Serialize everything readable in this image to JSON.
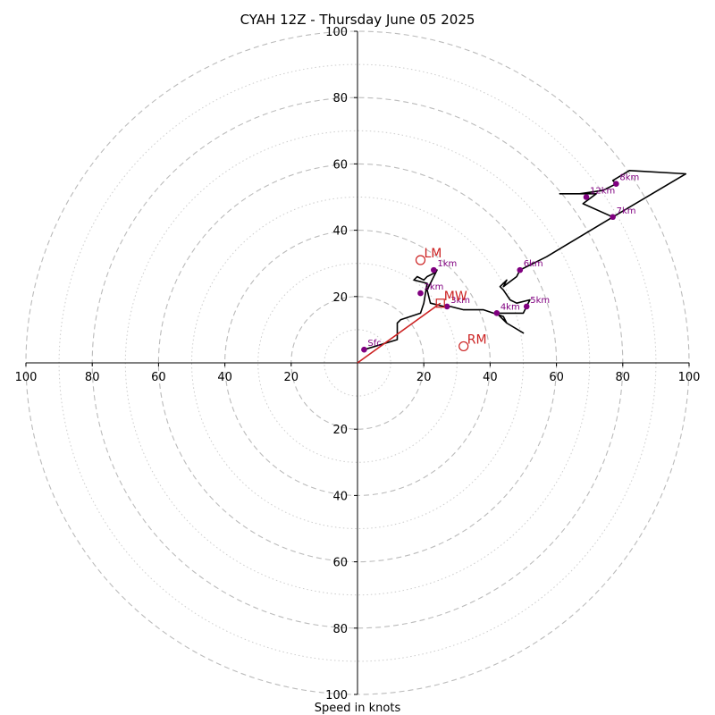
{
  "chart_data": {
    "type": "hodograph",
    "title": "CYAH 12Z - Thursday June 05 2025",
    "xlabel": "Speed in knots",
    "xlim": [
      -100,
      100
    ],
    "ylim": [
      -100,
      100
    ],
    "major_rings": [
      20,
      40,
      60,
      80,
      100
    ],
    "minor_rings": [
      10,
      30,
      50,
      70,
      90
    ],
    "x_tick_labels": [
      "100",
      "80",
      "60",
      "40",
      "20",
      "20",
      "40",
      "60",
      "80",
      "100"
    ],
    "x_tick_values": [
      -100,
      -80,
      -60,
      -40,
      -20,
      20,
      40,
      60,
      80,
      100
    ],
    "y_tick_labels": [
      "100",
      "80",
      "60",
      "40",
      "20",
      "20",
      "40",
      "60",
      "80",
      "100"
    ],
    "y_tick_values": [
      100,
      80,
      60,
      40,
      20,
      -20,
      -40,
      -60,
      -80,
      -100
    ],
    "colors": {
      "hodo_line": "#000000",
      "height_marker": "#800080",
      "storm_motion": "#cc2222",
      "grid": "#bbbbbb"
    },
    "hodograph_line": [
      [
        2,
        4
      ],
      [
        12,
        7
      ],
      [
        12,
        12
      ],
      [
        13,
        13
      ],
      [
        19,
        15
      ],
      [
        20,
        18
      ],
      [
        21,
        24
      ],
      [
        17,
        25
      ],
      [
        18,
        26
      ],
      [
        20,
        25
      ],
      [
        21,
        26
      ],
      [
        23,
        27
      ],
      [
        24,
        28
      ],
      [
        21,
        22
      ],
      [
        22,
        18
      ],
      [
        26,
        17
      ],
      [
        28,
        17
      ],
      [
        32,
        16
      ],
      [
        38,
        16
      ],
      [
        44,
        14
      ],
      [
        45,
        12
      ],
      [
        50,
        9
      ],
      [
        45,
        12
      ],
      [
        42,
        15
      ],
      [
        50,
        15
      ],
      [
        51,
        17
      ],
      [
        52,
        19
      ],
      [
        48,
        18
      ],
      [
        46,
        19
      ],
      [
        44,
        22
      ],
      [
        43,
        23
      ],
      [
        45,
        25
      ],
      [
        44,
        23
      ],
      [
        48,
        26
      ],
      [
        49,
        28
      ],
      [
        57,
        32
      ],
      [
        77,
        44
      ],
      [
        68,
        48
      ],
      [
        72,
        51
      ],
      [
        65,
        51
      ],
      [
        61,
        51
      ],
      [
        67,
        51
      ],
      [
        74,
        52
      ],
      [
        78,
        54
      ],
      [
        77,
        55
      ],
      [
        82,
        58
      ],
      [
        99,
        57
      ],
      [
        77,
        44
      ]
    ],
    "height_labels": [
      {
        "label": "Sfc",
        "u": 2,
        "v": 4
      },
      {
        "label": "1km",
        "u": 23,
        "v": 28
      },
      {
        "label": "2km",
        "u": 19,
        "v": 21
      },
      {
        "label": "3km",
        "u": 27,
        "v": 17
      },
      {
        "label": "4km",
        "u": 42,
        "v": 15
      },
      {
        "label": "5km",
        "u": 51,
        "v": 17
      },
      {
        "label": "6km",
        "u": 49,
        "v": 28
      },
      {
        "label": "7km",
        "u": 77,
        "v": 44
      },
      {
        "label": "8km",
        "u": 78,
        "v": 54
      },
      {
        "label": "12km",
        "u": 69,
        "v": 50
      }
    ],
    "storm_motions": [
      {
        "label": "LM",
        "u": 19,
        "v": 31,
        "marker": "circle"
      },
      {
        "label": "MW",
        "u": 25,
        "v": 18,
        "marker": "square"
      },
      {
        "label": "RM",
        "u": 32,
        "v": 5,
        "marker": "circle"
      }
    ],
    "mean_wind_vector": {
      "u": 25,
      "v": 18
    }
  }
}
